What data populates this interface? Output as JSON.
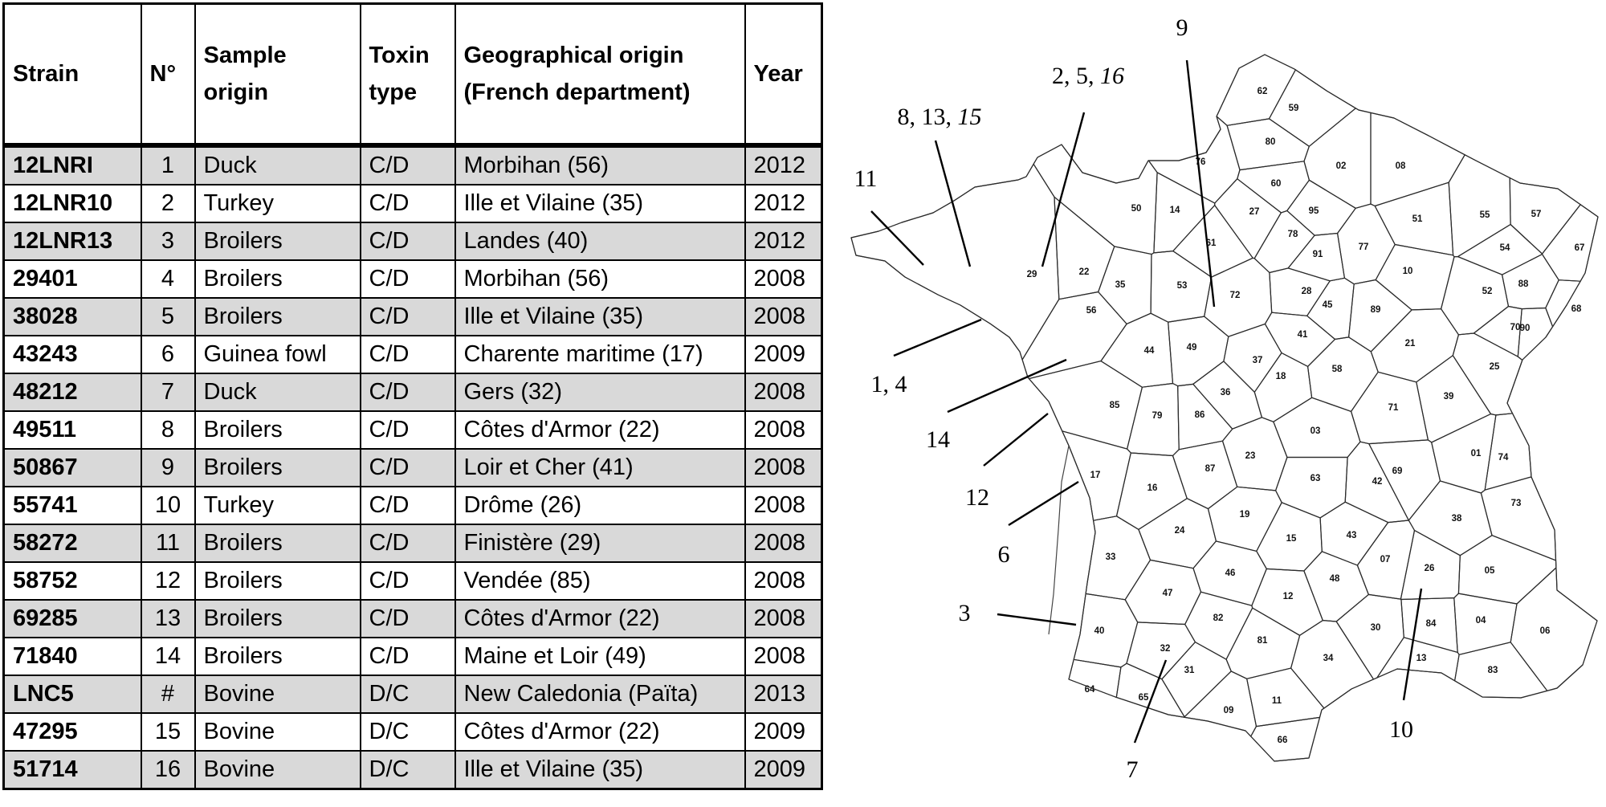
{
  "table": {
    "headers": {
      "strain": "Strain",
      "number": "N°",
      "sample_origin_1": "Sample",
      "sample_origin_2": "origin",
      "toxin_type_1": "Toxin",
      "toxin_type_2": "type",
      "geo_origin_1": "Geographical origin",
      "geo_origin_2": "(French department)",
      "year": "Year"
    },
    "rows": [
      {
        "strain": "12LNRI",
        "number": "1",
        "origin": "Duck",
        "toxin": "C/D",
        "geo": "Morbihan (56)",
        "year": "2012"
      },
      {
        "strain": "12LNR10",
        "number": "2",
        "origin": "Turkey",
        "toxin": "C/D",
        "geo": "Ille et Vilaine (35)",
        "year": "2012"
      },
      {
        "strain": "12LNR13",
        "number": "3",
        "origin": "Broilers",
        "toxin": "C/D",
        "geo": "Landes (40)",
        "year": "2012"
      },
      {
        "strain": "29401",
        "number": "4",
        "origin": "Broilers",
        "toxin": "C/D",
        "geo": "Morbihan (56)",
        "year": "2008"
      },
      {
        "strain": "38028",
        "number": "5",
        "origin": "Broilers",
        "toxin": "C/D",
        "geo": "Ille et Vilaine (35)",
        "year": "2008"
      },
      {
        "strain": "43243",
        "number": "6",
        "origin": "Guinea fowl",
        "toxin": "C/D",
        "geo": "Charente maritime (17)",
        "year": "2009"
      },
      {
        "strain": "48212",
        "number": "7",
        "origin": "Duck",
        "toxin": "C/D",
        "geo": "Gers (32)",
        "year": "2008"
      },
      {
        "strain": "49511",
        "number": "8",
        "origin": "Broilers",
        "toxin": "C/D",
        "geo": "Côtes d'Armor (22)",
        "year": "2008"
      },
      {
        "strain": "50867",
        "number": "9",
        "origin": "Broilers",
        "toxin": "C/D",
        "geo": "Loir et Cher (41)",
        "year": "2008"
      },
      {
        "strain": "55741",
        "number": "10",
        "origin": "Turkey",
        "toxin": "C/D",
        "geo": "Drôme (26)",
        "year": "2008"
      },
      {
        "strain": "58272",
        "number": "11",
        "origin": "Broilers",
        "toxin": "C/D",
        "geo": "Finistère (29)",
        "year": "2008"
      },
      {
        "strain": "58752",
        "number": "12",
        "origin": "Broilers",
        "toxin": "C/D",
        "geo": "Vendée (85)",
        "year": "2008"
      },
      {
        "strain": "69285",
        "number": "13",
        "origin": "Broilers",
        "toxin": "C/D",
        "geo": "Côtes d'Armor (22)",
        "year": "2008"
      },
      {
        "strain": "71840",
        "number": "14",
        "origin": "Broilers",
        "toxin": "C/D",
        "geo": "Maine et Loir (49)",
        "year": "2008"
      },
      {
        "strain": "LNC5",
        "number": "#",
        "origin": "Bovine",
        "toxin": "D/C",
        "geo": "New Caledonia (Païta)",
        "year": "2013"
      },
      {
        "strain": "47295",
        "number": "15",
        "origin": "Bovine",
        "toxin": "D/C",
        "geo": "Côtes d'Armor (22)",
        "year": "2009"
      },
      {
        "strain": "51714",
        "number": "16",
        "origin": "Bovine",
        "toxin": "D/C",
        "geo": "Ille et Vilaine (35)",
        "year": "2009"
      }
    ]
  },
  "map": {
    "departments": [
      {
        "code": "62"
      },
      {
        "code": "59"
      },
      {
        "code": "80"
      },
      {
        "code": "76"
      },
      {
        "code": "02"
      },
      {
        "code": "08"
      },
      {
        "code": "60"
      },
      {
        "code": "95"
      },
      {
        "code": "27"
      },
      {
        "code": "14"
      },
      {
        "code": "50"
      },
      {
        "code": "78"
      },
      {
        "code": "91"
      },
      {
        "code": "77"
      },
      {
        "code": "51"
      },
      {
        "code": "55"
      },
      {
        "code": "57"
      },
      {
        "code": "67"
      },
      {
        "code": "54"
      },
      {
        "code": "61"
      },
      {
        "code": "28"
      },
      {
        "code": "22"
      },
      {
        "code": "29"
      },
      {
        "code": "35"
      },
      {
        "code": "53"
      },
      {
        "code": "72"
      },
      {
        "code": "10"
      },
      {
        "code": "52"
      },
      {
        "code": "88"
      },
      {
        "code": "68"
      },
      {
        "code": "56"
      },
      {
        "code": "45"
      },
      {
        "code": "89"
      },
      {
        "code": "41"
      },
      {
        "code": "70"
      },
      {
        "code": "90"
      },
      {
        "code": "44"
      },
      {
        "code": "49"
      },
      {
        "code": "37"
      },
      {
        "code": "21"
      },
      {
        "code": "25"
      },
      {
        "code": "18"
      },
      {
        "code": "58"
      },
      {
        "code": "36"
      },
      {
        "code": "85"
      },
      {
        "code": "79"
      },
      {
        "code": "86"
      },
      {
        "code": "71"
      },
      {
        "code": "39"
      },
      {
        "code": "03"
      },
      {
        "code": "01"
      },
      {
        "code": "74"
      },
      {
        "code": "23"
      },
      {
        "code": "87"
      },
      {
        "code": "17"
      },
      {
        "code": "16"
      },
      {
        "code": "63"
      },
      {
        "code": "42"
      },
      {
        "code": "69"
      },
      {
        "code": "73"
      },
      {
        "code": "38"
      },
      {
        "code": "19"
      },
      {
        "code": "24"
      },
      {
        "code": "15"
      },
      {
        "code": "43"
      },
      {
        "code": "33"
      },
      {
        "code": "07"
      },
      {
        "code": "26"
      },
      {
        "code": "05"
      },
      {
        "code": "46"
      },
      {
        "code": "48"
      },
      {
        "code": "47"
      },
      {
        "code": "12"
      },
      {
        "code": "82"
      },
      {
        "code": "40"
      },
      {
        "code": "81"
      },
      {
        "code": "30"
      },
      {
        "code": "84"
      },
      {
        "code": "04"
      },
      {
        "code": "06"
      },
      {
        "code": "32"
      },
      {
        "code": "13"
      },
      {
        "code": "34"
      },
      {
        "code": "83"
      },
      {
        "code": "31"
      },
      {
        "code": "64"
      },
      {
        "code": "65"
      },
      {
        "code": "11"
      },
      {
        "code": "09"
      },
      {
        "code": "66"
      }
    ],
    "callouts": [
      {
        "id": "c9",
        "parts": [
          {
            "text": "9",
            "italic": false
          }
        ]
      },
      {
        "id": "c2516",
        "parts": [
          {
            "text": "2, 5, ",
            "italic": false
          },
          {
            "text": "16",
            "italic": true
          }
        ]
      },
      {
        "id": "c81315",
        "parts": [
          {
            "text": "8, 13, ",
            "italic": false
          },
          {
            "text": "15",
            "italic": true
          }
        ]
      },
      {
        "id": "c11",
        "parts": [
          {
            "text": "11",
            "italic": false
          }
        ]
      },
      {
        "id": "c14a",
        "parts": [
          {
            "text": "1, 4",
            "italic": false
          }
        ]
      },
      {
        "id": "c14",
        "parts": [
          {
            "text": "14",
            "italic": false
          }
        ]
      },
      {
        "id": "c12",
        "parts": [
          {
            "text": "12",
            "italic": false
          }
        ]
      },
      {
        "id": "c6",
        "parts": [
          {
            "text": "6",
            "italic": false
          }
        ]
      },
      {
        "id": "c3",
        "parts": [
          {
            "text": "3",
            "italic": false
          }
        ]
      },
      {
        "id": "c7",
        "parts": [
          {
            "text": "7",
            "italic": false
          }
        ]
      },
      {
        "id": "c10",
        "parts": [
          {
            "text": "10",
            "italic": false
          }
        ]
      }
    ]
  }
}
